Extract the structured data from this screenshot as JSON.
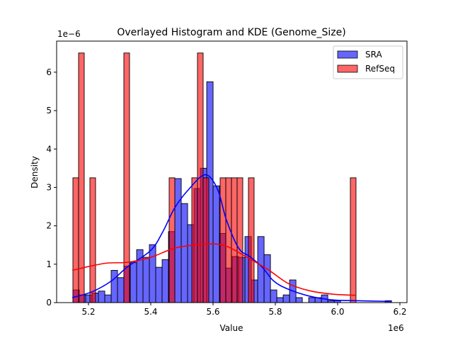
{
  "chart_data": {
    "type": "histogram+kde",
    "title": "Overlayed Histogram and KDE (Genome_Size)",
    "xlabel": "Value",
    "ylabel": "Density",
    "x_offset_text": "1e6",
    "y_offset_text": "1e−6",
    "xlim": [
      5.0977,
      6.2227
    ],
    "ylim": [
      0,
      6.81
    ],
    "x_ticks": [
      5.2,
      5.4,
      5.6,
      5.8,
      6.0,
      6.2
    ],
    "x_tick_labels": [
      "5.2",
      "5.4",
      "5.6",
      "5.8",
      "6.0",
      "6.2"
    ],
    "y_ticks": [
      0,
      1,
      2,
      3,
      4,
      5,
      6
    ],
    "y_tick_labels": [
      "0",
      "1",
      "2",
      "3",
      "4",
      "5",
      "6"
    ],
    "grid": false,
    "legend_placement": "top-right",
    "series": [
      {
        "name": "SRA",
        "color": "#0000ff",
        "bin_start": 5.15,
        "bin_end": 6.173,
        "densities": [
          0.33,
          0.2,
          0.2,
          0.25,
          0.3,
          0.2,
          0.84,
          0.65,
          0.95,
          1.04,
          1.38,
          1.18,
          1.51,
          0.92,
          1.12,
          1.85,
          3.23,
          2.58,
          2.03,
          2.97,
          3.5,
          5.75,
          3.04,
          1.8,
          0.9,
          1.2,
          1.18,
          1.72,
          0.59,
          1.72,
          1.25,
          0.33,
          0.13,
          0.2,
          0.59,
          0.13,
          0,
          0.13,
          0.13,
          0.2,
          0.05,
          0.05,
          0,
          0,
          0,
          0,
          0,
          0,
          0,
          0.05
        ],
        "kde": {
          "x": [
            5.148,
            5.211,
            5.273,
            5.325,
            5.4,
            5.439,
            5.477,
            5.523,
            5.575,
            5.614,
            5.643,
            5.682,
            5.718,
            5.757,
            5.795,
            5.841,
            5.909,
            5.984,
            6.059,
            6.173
          ],
          "y": [
            0.13,
            0.28,
            0.56,
            0.93,
            1.36,
            1.85,
            2.47,
            2.96,
            3.33,
            2.96,
            2.15,
            1.42,
            1.2,
            0.93,
            0.56,
            0.35,
            0.17,
            0.07,
            0.05,
            0.03
          ]
        }
      },
      {
        "name": "RefSeq",
        "color": "#ff0000",
        "bin_start": 5.15,
        "bin_end": 6.059,
        "densities": [
          3.25,
          6.5,
          0,
          3.25,
          0,
          0,
          0,
          0,
          0,
          6.5,
          0,
          0,
          0,
          0,
          0,
          0,
          0,
          3.25,
          0,
          0,
          0,
          3.25,
          6.5,
          3.25,
          0,
          0,
          3.25,
          3.25,
          3.25,
          3.25,
          0,
          3.25,
          0,
          0,
          0,
          0,
          0,
          0,
          0,
          0,
          0,
          0,
          0,
          0,
          0,
          0,
          0,
          0,
          0,
          3.25
        ],
        "kde": {
          "x": [
            5.148,
            5.25,
            5.325,
            5.4,
            5.477,
            5.552,
            5.591,
            5.643,
            5.718,
            5.78,
            5.841,
            5.909,
            5.984,
            6.057
          ],
          "y": [
            0.84,
            1.02,
            1.05,
            1.18,
            1.42,
            1.51,
            1.53,
            1.47,
            1.14,
            0.84,
            0.5,
            0.31,
            0.22,
            0.19
          ]
        }
      }
    ]
  }
}
